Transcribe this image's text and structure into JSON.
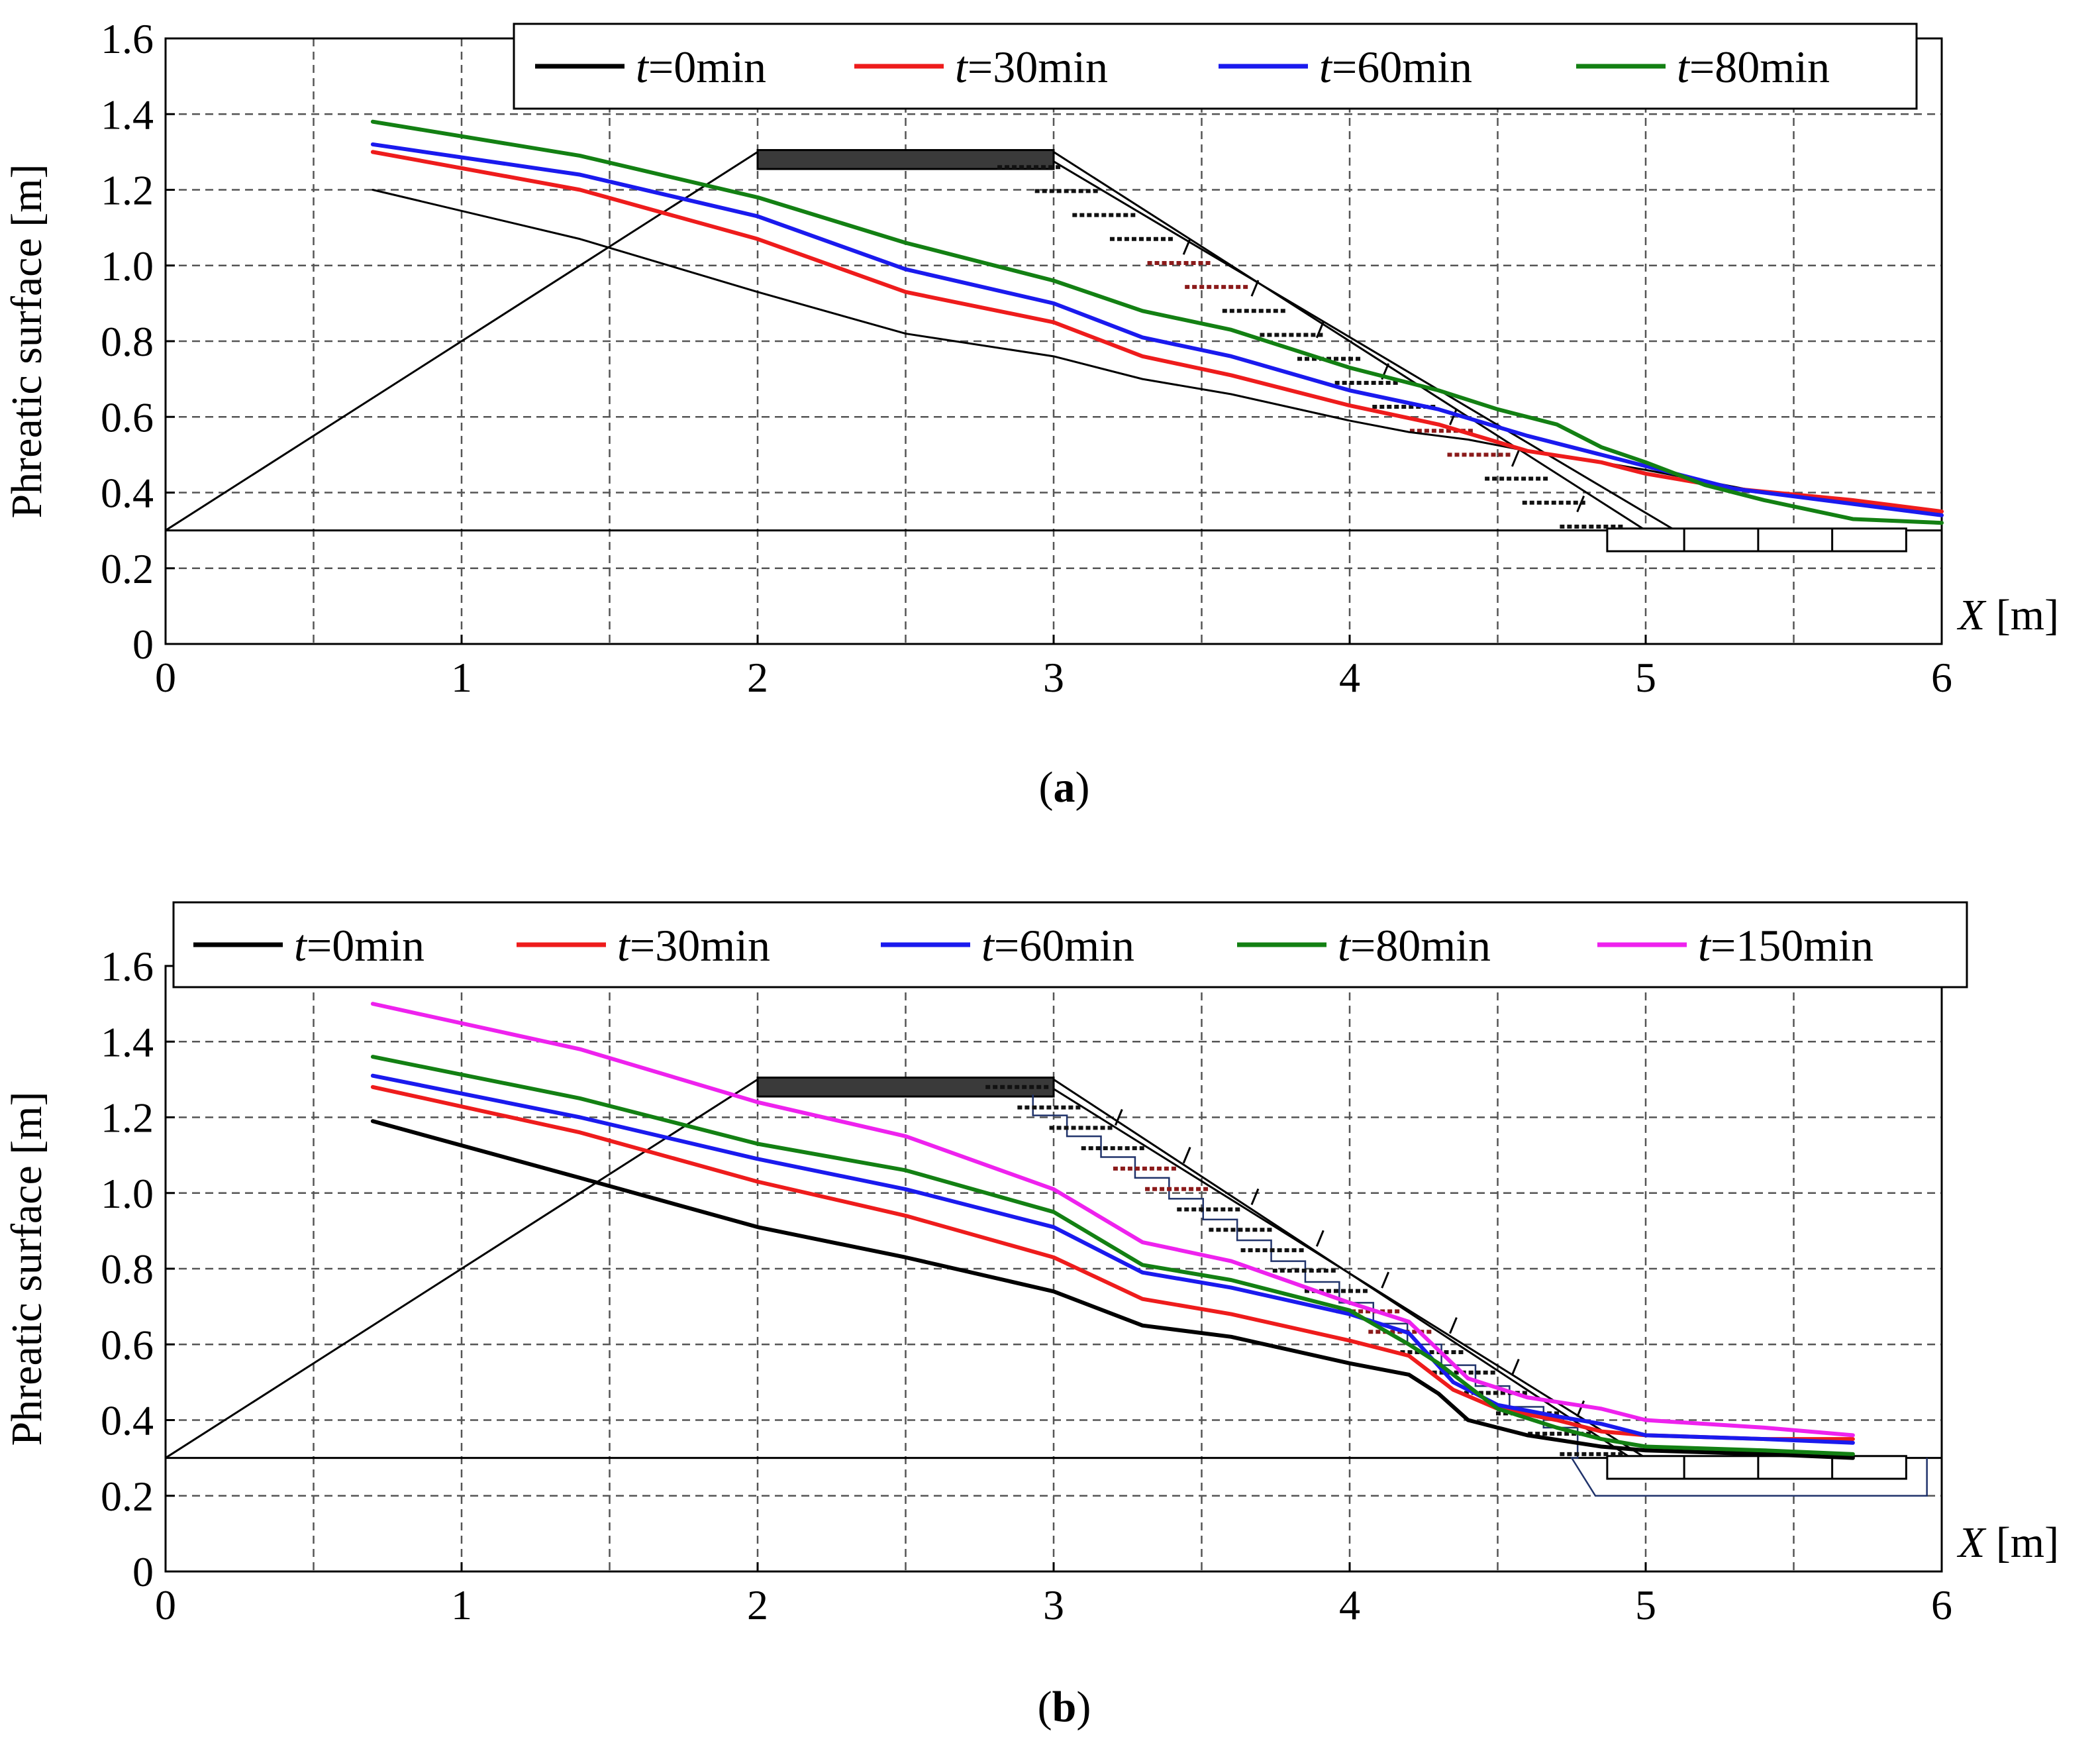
{
  "chart_data": [
    {
      "type": "line",
      "caption": "(a)",
      "caption_letter": "a",
      "ylabel": "Phreatic surface [m]",
      "xlabel_var": "X",
      "xlabel_unit": " [m]",
      "xlim": [
        0,
        6
      ],
      "ylim": [
        0,
        1.6
      ],
      "x_ticks": [
        "0",
        "1",
        "2",
        "3",
        "4",
        "5",
        "6"
      ],
      "y_ticks": [
        "0",
        "0.2",
        "0.4",
        "0.6",
        "0.8",
        "1.0",
        "1.2",
        "1.4",
        "1.6"
      ],
      "grid": true,
      "legend_position": "top-right",
      "series": [
        {
          "name": "t=0min",
          "t_var": "t",
          "t_rest": "=0min",
          "color": "#000000",
          "x": [
            0.7,
            1.4,
            2.0,
            2.5,
            3.0,
            3.3,
            3.6,
            4.0,
            4.2,
            4.4,
            4.6,
            4.85,
            5.0,
            5.4,
            5.7,
            6.0
          ],
          "y": [
            1.2,
            1.07,
            0.93,
            0.82,
            0.76,
            0.7,
            0.66,
            0.59,
            0.56,
            0.54,
            0.51,
            0.48,
            0.46,
            0.4,
            0.37,
            0.35
          ]
        },
        {
          "name": "t=30min",
          "t_var": "t",
          "t_rest": "=30min",
          "color": "#ee1c1c",
          "x": [
            0.7,
            1.4,
            2.0,
            2.5,
            3.0,
            3.3,
            3.6,
            4.0,
            4.3,
            4.6,
            4.85,
            5.0,
            5.3,
            5.7,
            6.0
          ],
          "y": [
            1.3,
            1.2,
            1.07,
            0.93,
            0.85,
            0.76,
            0.71,
            0.63,
            0.58,
            0.51,
            0.48,
            0.45,
            0.41,
            0.38,
            0.35
          ]
        },
        {
          "name": "t=60min",
          "t_var": "t",
          "t_rest": "=60min",
          "color": "#1a1aee",
          "x": [
            0.7,
            1.4,
            2.0,
            2.5,
            3.0,
            3.3,
            3.6,
            4.0,
            4.3,
            4.6,
            4.85,
            5.0,
            5.3,
            5.7,
            6.0
          ],
          "y": [
            1.32,
            1.24,
            1.13,
            0.99,
            0.9,
            0.81,
            0.76,
            0.67,
            0.62,
            0.55,
            0.5,
            0.47,
            0.41,
            0.37,
            0.34
          ]
        },
        {
          "name": "t=80min",
          "t_var": "t",
          "t_rest": "=80min",
          "color": "#138013",
          "x": [
            0.7,
            1.4,
            2.0,
            2.5,
            3.0,
            3.3,
            3.6,
            4.0,
            4.3,
            4.5,
            4.7,
            4.85,
            5.0,
            5.2,
            5.4,
            5.7,
            6.0
          ],
          "y": [
            1.38,
            1.29,
            1.18,
            1.06,
            0.96,
            0.88,
            0.83,
            0.73,
            0.67,
            0.62,
            0.58,
            0.52,
            0.48,
            0.42,
            0.38,
            0.33,
            0.32
          ]
        }
      ]
    },
    {
      "type": "line",
      "caption": "(b)",
      "caption_letter": "b",
      "ylabel": "Phreatic surface [m]",
      "xlabel_var": "X",
      "xlabel_unit": " [m]",
      "xlim": [
        0,
        6
      ],
      "ylim": [
        0,
        1.6
      ],
      "x_ticks": [
        "0",
        "1",
        "2",
        "3",
        "4",
        "5",
        "6"
      ],
      "y_ticks": [
        "0",
        "0.2",
        "0.4",
        "0.6",
        "0.8",
        "1.0",
        "1.2",
        "1.4",
        "1.6"
      ],
      "grid": true,
      "legend_position": "top",
      "series": [
        {
          "name": "t=0min",
          "t_var": "t",
          "t_rest": "=0min",
          "color": "#000000",
          "x": [
            0.7,
            1.4,
            2.0,
            2.5,
            3.0,
            3.3,
            3.6,
            4.0,
            4.2,
            4.3,
            4.4,
            4.6,
            4.85,
            5.0,
            5.4,
            5.7
          ],
          "y": [
            1.19,
            1.04,
            0.91,
            0.83,
            0.74,
            0.65,
            0.62,
            0.55,
            0.52,
            0.47,
            0.4,
            0.36,
            0.33,
            0.32,
            0.31,
            0.3
          ]
        },
        {
          "name": "t=30min",
          "t_var": "t",
          "t_rest": "=30min",
          "color": "#ee1c1c",
          "x": [
            0.7,
            1.4,
            2.0,
            2.5,
            3.0,
            3.3,
            3.6,
            4.0,
            4.2,
            4.35,
            4.5,
            4.7,
            4.85,
            5.0,
            5.4,
            5.7
          ],
          "y": [
            1.28,
            1.16,
            1.03,
            0.94,
            0.83,
            0.72,
            0.68,
            0.61,
            0.57,
            0.48,
            0.43,
            0.4,
            0.37,
            0.36,
            0.35,
            0.35
          ]
        },
        {
          "name": "t=60min",
          "t_var": "t",
          "t_rest": "=60min",
          "color": "#1a1aee",
          "x": [
            0.7,
            1.4,
            2.0,
            2.5,
            3.0,
            3.3,
            3.6,
            4.0,
            4.2,
            4.35,
            4.5,
            4.7,
            4.85,
            5.0,
            5.4,
            5.7
          ],
          "y": [
            1.31,
            1.2,
            1.09,
            1.01,
            0.91,
            0.79,
            0.75,
            0.68,
            0.63,
            0.5,
            0.44,
            0.41,
            0.39,
            0.36,
            0.35,
            0.34
          ]
        },
        {
          "name": "t=80min",
          "t_var": "t",
          "t_rest": "=80min",
          "color": "#138013",
          "x": [
            0.7,
            1.4,
            2.0,
            2.5,
            3.0,
            3.3,
            3.6,
            4.0,
            4.2,
            4.3,
            4.5,
            4.7,
            4.85,
            5.0,
            5.4,
            5.7
          ],
          "y": [
            1.36,
            1.25,
            1.13,
            1.06,
            0.95,
            0.81,
            0.77,
            0.69,
            0.6,
            0.55,
            0.43,
            0.38,
            0.35,
            0.33,
            0.32,
            0.31
          ]
        },
        {
          "name": "t=150min",
          "t_var": "t",
          "t_rest": "=150min",
          "color": "#ee22ee",
          "x": [
            0.7,
            1.4,
            2.0,
            2.5,
            3.0,
            3.3,
            3.6,
            4.0,
            4.2,
            4.4,
            4.6,
            4.85,
            5.0,
            5.4,
            5.7
          ],
          "y": [
            1.5,
            1.38,
            1.24,
            1.15,
            1.01,
            0.87,
            0.82,
            0.71,
            0.66,
            0.51,
            0.46,
            0.43,
            0.4,
            0.38,
            0.36
          ]
        }
      ]
    }
  ]
}
